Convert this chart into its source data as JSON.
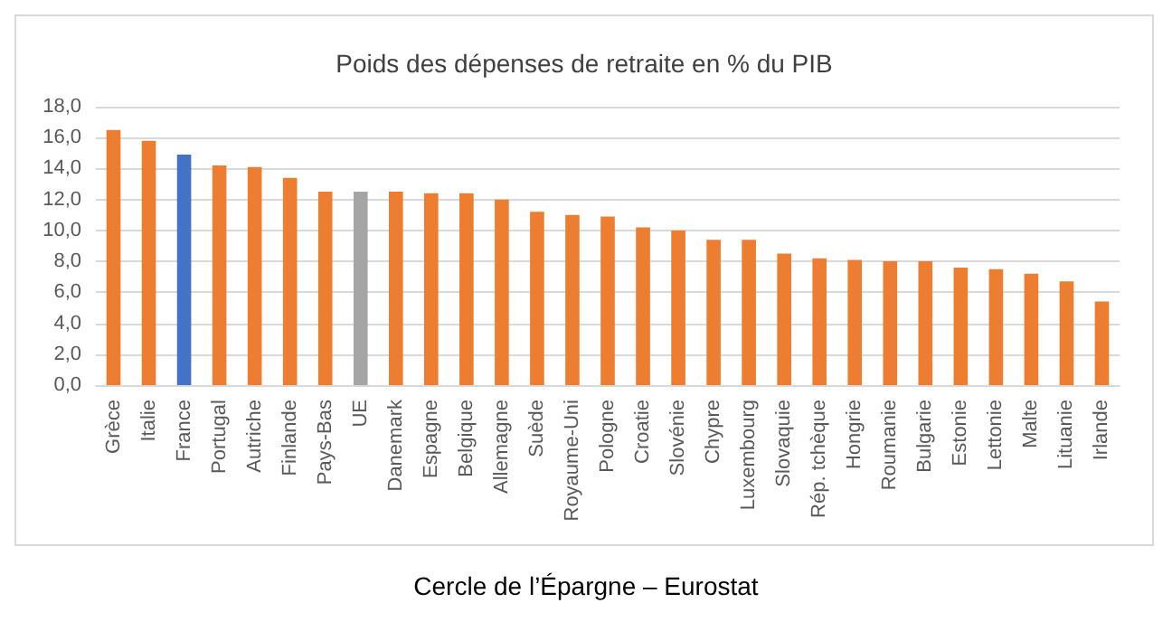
{
  "chart_data": {
    "type": "bar",
    "title": "Poids des dépenses de retraite en % du PIB",
    "categories": [
      "Grèce",
      "Italie",
      "France",
      "Portugal",
      "Autriche",
      "Finlande",
      "Pays-Bas",
      "UE",
      "Danemark",
      "Espagne",
      "Belgique",
      "Allemagne",
      "Suède",
      "Royaume-Uni",
      "Pologne",
      "Croatie",
      "Slovénie",
      "Chypre",
      "Luxembourg",
      "Slovaquie",
      "Rép. tchèque",
      "Hongrie",
      "Roumanie",
      "Bulgarie",
      "Estonie",
      "Lettonie",
      "Malte",
      "Lituanie",
      "Irlande"
    ],
    "values": [
      16.5,
      15.8,
      14.9,
      14.2,
      14.1,
      13.4,
      12.5,
      12.5,
      12.5,
      12.4,
      12.4,
      12.0,
      11.2,
      11.0,
      10.9,
      10.2,
      10.0,
      9.4,
      9.4,
      8.5,
      8.2,
      8.1,
      8.0,
      8.0,
      7.6,
      7.5,
      7.2,
      6.7,
      5.4
    ],
    "colors": [
      "#ed7d31",
      "#ed7d31",
      "#4472c4",
      "#ed7d31",
      "#ed7d31",
      "#ed7d31",
      "#ed7d31",
      "#a5a5a5",
      "#ed7d31",
      "#ed7d31",
      "#ed7d31",
      "#ed7d31",
      "#ed7d31",
      "#ed7d31",
      "#ed7d31",
      "#ed7d31",
      "#ed7d31",
      "#ed7d31",
      "#ed7d31",
      "#ed7d31",
      "#ed7d31",
      "#ed7d31",
      "#ed7d31",
      "#ed7d31",
      "#ed7d31",
      "#ed7d31",
      "#ed7d31",
      "#ed7d31",
      "#ed7d31"
    ],
    "ylim": [
      0,
      18
    ],
    "yticks": [
      {
        "value": 0,
        "label": "0,0"
      },
      {
        "value": 2,
        "label": "2,0"
      },
      {
        "value": 4,
        "label": "4,0"
      },
      {
        "value": 6,
        "label": "6,0"
      },
      {
        "value": 8,
        "label": "8,0"
      },
      {
        "value": 10,
        "label": "10,0"
      },
      {
        "value": 12,
        "label": "12,0"
      },
      {
        "value": 14,
        "label": "14,0"
      },
      {
        "value": 16,
        "label": "16,0"
      },
      {
        "value": 18,
        "label": "18,0"
      }
    ],
    "grid": "y",
    "annotations": [
      "Cercle de l’Épargne – Eurostat"
    ]
  }
}
